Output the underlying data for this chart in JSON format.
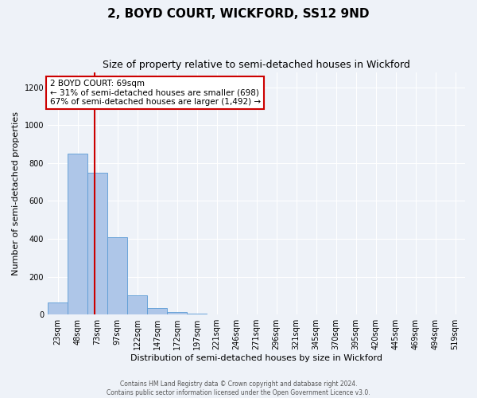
{
  "title": "2, BOYD COURT, WICKFORD, SS12 9ND",
  "subtitle": "Size of property relative to semi-detached houses in Wickford",
  "xlabel": "Distribution of semi-detached houses by size in Wickford",
  "ylabel": "Number of semi-detached properties",
  "categories": [
    "23sqm",
    "48sqm",
    "73sqm",
    "97sqm",
    "122sqm",
    "147sqm",
    "172sqm",
    "197sqm",
    "221sqm",
    "246sqm",
    "271sqm",
    "296sqm",
    "321sqm",
    "345sqm",
    "370sqm",
    "395sqm",
    "420sqm",
    "445sqm",
    "469sqm",
    "494sqm",
    "519sqm"
  ],
  "values": [
    65,
    850,
    750,
    410,
    100,
    35,
    15,
    5,
    0,
    0,
    0,
    0,
    0,
    0,
    0,
    0,
    0,
    0,
    0,
    0,
    0
  ],
  "bar_color": "#aec6e8",
  "bar_edge_color": "#5b9bd5",
  "ylim": [
    0,
    1280
  ],
  "yticks": [
    0,
    200,
    400,
    600,
    800,
    1000,
    1200
  ],
  "red_line_x": 1.84,
  "red_line_color": "#cc0000",
  "annotation_text": "2 BOYD COURT: 69sqm\n← 31% of semi-detached houses are smaller (698)\n67% of semi-detached houses are larger (1,492) →",
  "annotation_box_color": "#ffffff",
  "annotation_box_edge": "#cc0000",
  "footer_line1": "Contains HM Land Registry data © Crown copyright and database right 2024.",
  "footer_line2": "Contains public sector information licensed under the Open Government Licence v3.0.",
  "background_color": "#eef2f8",
  "title_fontsize": 11,
  "subtitle_fontsize": 9,
  "xlabel_fontsize": 8,
  "ylabel_fontsize": 8,
  "tick_fontsize": 7,
  "annotation_fontsize": 7.5,
  "footer_fontsize": 5.5
}
